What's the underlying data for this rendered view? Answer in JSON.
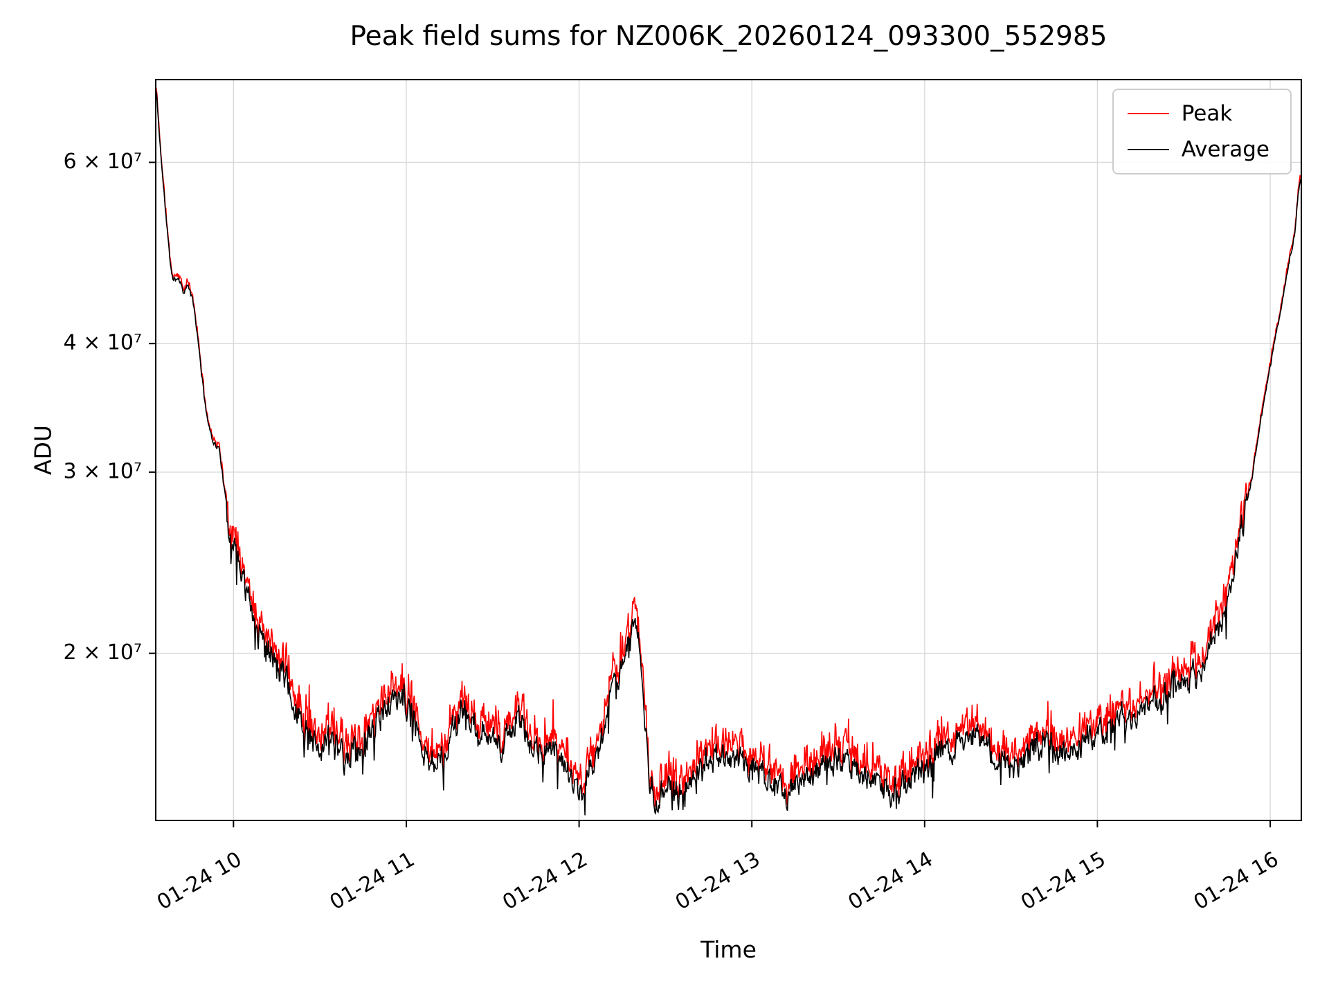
{
  "chart_data": {
    "type": "line",
    "title": "Peak field sums for NZ006K_20260124_093300_552985",
    "xlabel": "Time",
    "ylabel": "ADU",
    "yscale": "log",
    "grid": true,
    "legend_position": "upper right",
    "xlim_hours": [
      9.55,
      16.18
    ],
    "ylim": [
      13760000,
      72200000
    ],
    "x_ticks": [
      {
        "hour": 10,
        "label": "01-24 10"
      },
      {
        "hour": 11,
        "label": "01-24 11"
      },
      {
        "hour": 12,
        "label": "01-24 12"
      },
      {
        "hour": 13,
        "label": "01-24 13"
      },
      {
        "hour": 14,
        "label": "01-24 14"
      },
      {
        "hour": 15,
        "label": "01-24 15"
      },
      {
        "hour": 16,
        "label": "01-24 16"
      }
    ],
    "y_ticks": [
      {
        "value": 20000000,
        "label": "2 × 10⁷"
      },
      {
        "value": 30000000,
        "label": "3 × 10⁷"
      },
      {
        "value": 40000000,
        "label": "4 × 10⁷"
      },
      {
        "value": 60000000,
        "label": "6 × 10⁷"
      }
    ],
    "y_unit": 10000000,
    "x_hours": [
      9.555,
      9.57,
      9.59,
      9.61,
      9.63,
      9.65,
      9.68,
      9.71,
      9.74,
      9.77,
      9.8,
      9.83,
      9.86,
      9.89,
      9.92,
      9.95,
      9.98,
      10.01,
      10.04,
      10.07,
      10.1,
      10.14,
      10.18,
      10.22,
      10.26,
      10.3,
      10.35,
      10.4,
      10.45,
      10.5,
      10.55,
      10.6,
      10.65,
      10.7,
      10.75,
      10.8,
      10.85,
      10.9,
      10.95,
      11.0,
      11.05,
      11.1,
      11.15,
      11.2,
      11.25,
      11.3,
      11.34,
      11.38,
      11.42,
      11.46,
      11.5,
      11.55,
      11.6,
      11.65,
      11.7,
      11.75,
      11.8,
      11.85,
      11.9,
      11.95,
      12.0,
      12.05,
      12.1,
      12.15,
      12.2,
      12.25,
      12.3,
      12.33,
      12.36,
      12.4,
      12.45,
      12.5,
      12.55,
      12.6,
      12.65,
      12.7,
      12.8,
      12.9,
      13.0,
      13.1,
      13.2,
      13.3,
      13.4,
      13.5,
      13.6,
      13.7,
      13.8,
      13.9,
      14.0,
      14.1,
      14.2,
      14.3,
      14.4,
      14.5,
      14.6,
      14.7,
      14.8,
      14.9,
      15.0,
      15.1,
      15.2,
      15.3,
      15.4,
      15.5,
      15.6,
      15.7,
      15.78,
      15.85,
      15.9,
      15.95,
      16.0,
      16.05,
      16.1,
      16.14,
      16.17
    ],
    "series": [
      {
        "name": "Peak",
        "color": "#ff0000",
        "derived": "Average envelope multiplied by (1 + peak_base + peak_var·r²) noise; red spikes sit just above the Average trace"
      },
      {
        "name": "Average",
        "color": "#000000",
        "values_e7": [
          7.0,
          6.4,
          5.8,
          5.3,
          4.85,
          4.6,
          4.65,
          4.5,
          4.55,
          4.35,
          3.95,
          3.55,
          3.3,
          3.2,
          3.15,
          2.85,
          2.6,
          2.5,
          2.45,
          2.35,
          2.25,
          2.1,
          2.05,
          2.0,
          1.95,
          1.9,
          1.8,
          1.72,
          1.65,
          1.62,
          1.68,
          1.63,
          1.58,
          1.6,
          1.63,
          1.67,
          1.72,
          1.78,
          1.82,
          1.8,
          1.72,
          1.62,
          1.55,
          1.58,
          1.65,
          1.72,
          1.78,
          1.7,
          1.66,
          1.7,
          1.66,
          1.62,
          1.68,
          1.72,
          1.66,
          1.62,
          1.6,
          1.63,
          1.58,
          1.52,
          1.45,
          1.52,
          1.58,
          1.7,
          1.85,
          1.95,
          2.08,
          2.15,
          1.9,
          1.55,
          1.42,
          1.5,
          1.46,
          1.44,
          1.5,
          1.54,
          1.6,
          1.58,
          1.55,
          1.5,
          1.46,
          1.5,
          1.55,
          1.58,
          1.54,
          1.5,
          1.46,
          1.5,
          1.55,
          1.6,
          1.65,
          1.68,
          1.6,
          1.55,
          1.6,
          1.65,
          1.6,
          1.64,
          1.68,
          1.7,
          1.74,
          1.78,
          1.83,
          1.88,
          1.95,
          2.1,
          2.35,
          2.7,
          3.0,
          3.4,
          3.8,
          4.2,
          4.7,
          5.1,
          5.75
        ]
      }
    ],
    "noise": {
      "seed": 11,
      "samples": 1800,
      "plateau_amp": 0.048,
      "steep_amp": 0.012,
      "peak_base": 0.012,
      "peak_var": 0.05,
      "spike_prob": 0.03,
      "spike_gain": 0.06,
      "plateau_threshold_e7": 2.8
    },
    "grid_color": "#d9d9d9",
    "spine_color": "#000000"
  }
}
